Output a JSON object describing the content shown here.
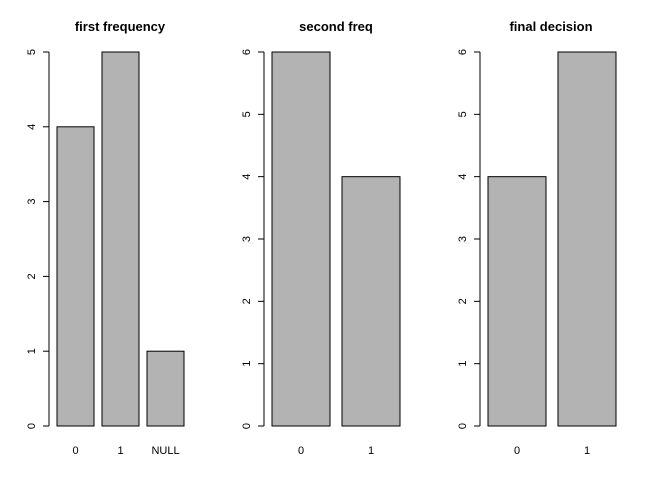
{
  "chart_data": [
    {
      "type": "bar",
      "title": "first frequency",
      "categories": [
        "0",
        "1",
        "NULL"
      ],
      "values": [
        4,
        5,
        1
      ],
      "ylim": [
        0,
        5
      ],
      "yticks": [
        0,
        1,
        2,
        3,
        4,
        5
      ],
      "xlabel": "",
      "ylabel": "",
      "grid": false,
      "bar_color": "#b3b3b3"
    },
    {
      "type": "bar",
      "title": "second freq",
      "categories": [
        "0",
        "1"
      ],
      "values": [
        6,
        4
      ],
      "ylim": [
        0,
        6
      ],
      "yticks": [
        0,
        1,
        2,
        3,
        4,
        5,
        6
      ],
      "xlabel": "",
      "ylabel": "",
      "grid": false,
      "bar_color": "#b3b3b3"
    },
    {
      "type": "bar",
      "title": "final decision",
      "categories": [
        "0",
        "1"
      ],
      "values": [
        4,
        6
      ],
      "ylim": [
        0,
        6
      ],
      "yticks": [
        0,
        1,
        2,
        3,
        4,
        5,
        6
      ],
      "xlabel": "",
      "ylabel": "",
      "grid": false,
      "bar_color": "#b3b3b3"
    }
  ]
}
